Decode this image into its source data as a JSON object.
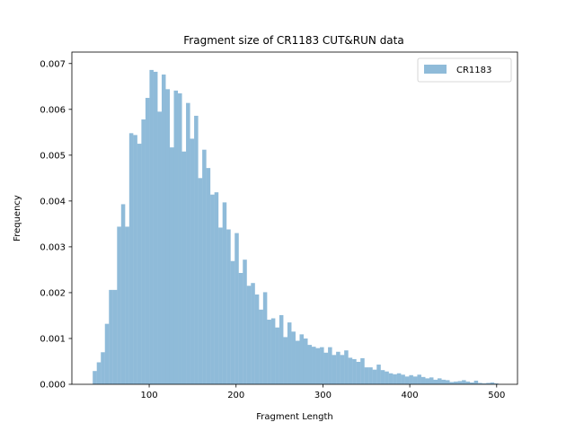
{
  "chart_data": {
    "type": "bar",
    "title": "Fragment size of CR1183 CUT&RUN data",
    "xlabel": "Fragment Length",
    "ylabel": "Frequency",
    "xlim": [
      11,
      524
    ],
    "ylim": [
      0,
      0.00725
    ],
    "xticks": [
      100,
      200,
      300,
      400,
      500
    ],
    "xtick_labels": [
      "100",
      "200",
      "300",
      "400",
      "500"
    ],
    "yticks": [
      0,
      0.001,
      0.002,
      0.003,
      0.004,
      0.005,
      0.006,
      0.007
    ],
    "ytick_labels": [
      "0.000",
      "0.001",
      "0.002",
      "0.003",
      "0.004",
      "0.005",
      "0.006",
      "0.007"
    ],
    "legend_position": "top-right",
    "bin_edges_range": [
      35,
      502
    ],
    "series": [
      {
        "name": "CR1183",
        "color": "#1f77b4",
        "alpha": 0.5,
        "values": [
          0.00029,
          0.00048,
          0.0007,
          0.00132,
          0.00206,
          0.00206,
          0.00344,
          0.00393,
          0.00344,
          0.00548,
          0.00544,
          0.00525,
          0.00578,
          0.00625,
          0.00686,
          0.00682,
          0.00595,
          0.00676,
          0.00644,
          0.00517,
          0.00641,
          0.00635,
          0.00508,
          0.00614,
          0.00536,
          0.00586,
          0.0045,
          0.00512,
          0.00472,
          0.00414,
          0.00419,
          0.00342,
          0.00397,
          0.00338,
          0.00269,
          0.0033,
          0.00243,
          0.00272,
          0.00215,
          0.00221,
          0.00196,
          0.00163,
          0.00201,
          0.00141,
          0.00144,
          0.00124,
          0.00151,
          0.00103,
          0.00135,
          0.00115,
          0.00095,
          0.00109,
          0.001,
          0.00086,
          0.00082,
          0.00079,
          0.00081,
          0.00069,
          0.00081,
          0.00064,
          0.00071,
          0.00064,
          0.00074,
          0.00058,
          0.00055,
          0.00049,
          0.00057,
          0.00037,
          0.00037,
          0.00032,
          0.00043,
          0.00031,
          0.00028,
          0.00024,
          0.00022,
          0.00024,
          0.00021,
          0.00017,
          0.0002,
          0.00017,
          0.00021,
          0.00016,
          0.00013,
          0.00015,
          0.0001,
          0.00013,
          0.0001,
          9e-05,
          5e-05,
          6e-05,
          7e-05,
          9e-05,
          6e-05,
          4e-05,
          8e-05,
          3e-05,
          2e-05,
          3e-05,
          4e-05,
          2e-05
        ]
      }
    ]
  }
}
